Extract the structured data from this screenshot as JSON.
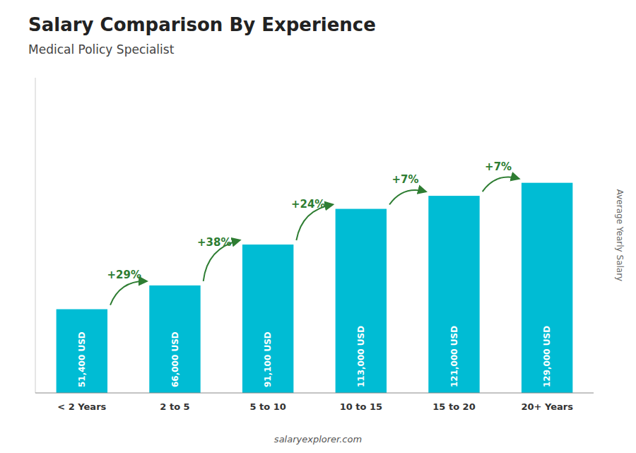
{
  "chart_data": {
    "type": "bar",
    "title": "Salary Comparison By Experience",
    "subtitle": "Medical Policy Specialist",
    "ylabel": "Average Yearly Salary",
    "footer": "salaryexplorer.com",
    "categories": [
      "< 2 Years",
      "2 to 5",
      "5 to 10",
      "10 to 15",
      "15 to 20",
      "20+ Years"
    ],
    "values": [
      51400,
      66000,
      91100,
      113000,
      121000,
      129000
    ],
    "value_labels": [
      "51,400 USD",
      "66,000 USD",
      "91,100 USD",
      "113,000 USD",
      "121,000 USD",
      "129,000 USD"
    ],
    "annotations": [
      null,
      "+29%",
      "+38%",
      "+24%",
      "+7%",
      "+7%"
    ],
    "color": "#00bcd4",
    "ylim": [
      0,
      193500
    ],
    "data_labels": true,
    "tick_labels": "x",
    "grid": false
  }
}
